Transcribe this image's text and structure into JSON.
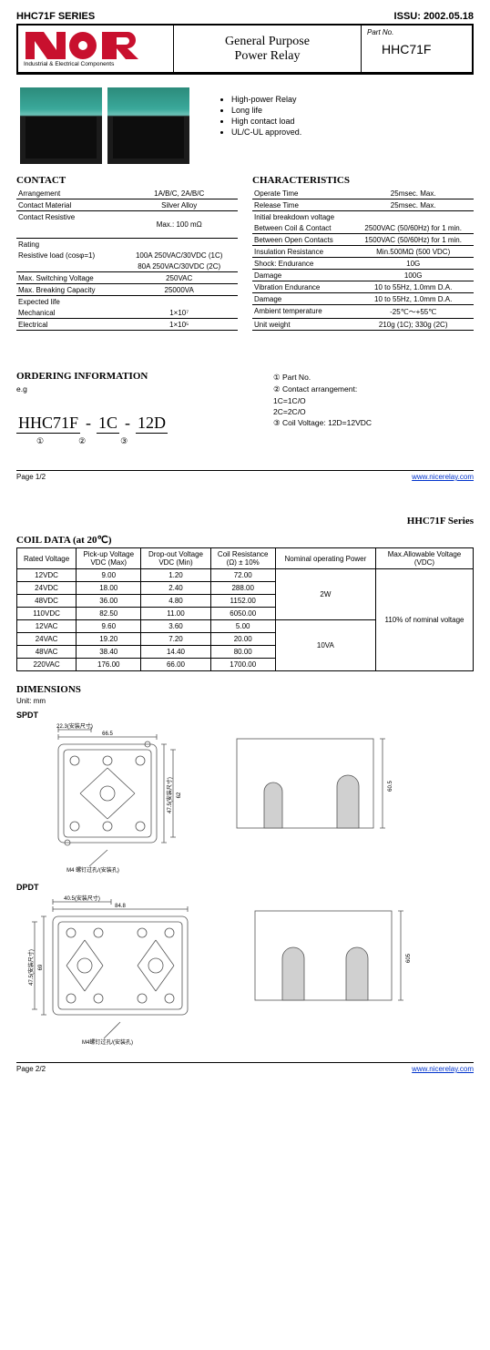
{
  "header": {
    "series": "HHC71F SERIES",
    "issue": "ISSU: 2002.05.18",
    "logo_sub": "Industrial & Electrical Components",
    "title_l1": "General Purpose",
    "title_l2": "Power Relay",
    "partno_label": "Part No.",
    "partno": "HHC71F",
    "logo_color": "#c8102e"
  },
  "bullets": [
    "High-power Relay",
    "Long life",
    "High contact load",
    "UL/C-UL approved."
  ],
  "contact": {
    "title": "CONTACT",
    "rows": [
      [
        "Arrangement",
        "1A/B/C, 2A/B/C"
      ],
      [
        "Contact Material",
        "Silver Alloy"
      ],
      [
        "Contact Resistive",
        "Max.: 100 mΩ"
      ],
      [
        "Rating",
        ""
      ],
      [
        "Resistive load  (cosφ=1)",
        "100A 250VAC/30VDC (1C)"
      ],
      [
        "",
        "80A 250VAC/30VDC (2C)"
      ],
      [
        "Max. Switching Voltage",
        "250VAC"
      ],
      [
        "Max. Breaking Capacity",
        "25000VA"
      ],
      [
        "Expected life",
        ""
      ],
      [
        "        Mechanical",
        "1×10⁷"
      ],
      [
        "        Electrical",
        "1×10⁵"
      ]
    ]
  },
  "char": {
    "title": "CHARACTERISTICS",
    "rows": [
      [
        "Operate Time",
        "25msec.  Max."
      ],
      [
        "Release Time",
        "25msec.  Max."
      ],
      [
        "Initial breakdown voltage",
        ""
      ],
      [
        "  Between Coil & Contact",
        "2500VAC (50/60Hz) for 1 min."
      ],
      [
        "  Between Open  Contacts",
        "1500VAC (50/60Hz) for 1 min."
      ],
      [
        "Insulation Resistance",
        "Min.500MΩ  (500 VDC)"
      ],
      [
        "Shock:         Endurance",
        "10G"
      ],
      [
        "                    Damage",
        "100G"
      ],
      [
        "Vibration      Endurance",
        "10 to 55Hz, 1.0mm D.A."
      ],
      [
        "                    Damage",
        "10 to 55Hz, 1.0mm D.A."
      ],
      [
        "Ambient temperature",
        "-25℃～+55℃"
      ],
      [
        "Unit weight",
        "210g (1C); 330g (2C)"
      ]
    ]
  },
  "ordering": {
    "title": "ORDERING INFORMATION",
    "eg": "e.g",
    "code_parts": [
      "HHC71F",
      "1C",
      "12D"
    ],
    "nums": [
      "①",
      "②",
      "③"
    ],
    "legend": [
      "① Part No.",
      "② Contact arrangement:",
      "     1C=1C/O",
      "     2C=2C/O",
      "③ Coil Voltage:    12D=12VDC"
    ]
  },
  "page1_foot": {
    "page": "Page 1/2",
    "link": "www.nicerelay.com"
  },
  "page2": {
    "title": "HHC71F Series",
    "coil_title": "COIL DATA (at 20℃)",
    "headers": [
      "Rated Voltage",
      "Pick-up Voltage\nVDC (Max)",
      "Drop-out Voltage\nVDC (Min)",
      "Coil Resistance\n(Ω)  ± 10%",
      "Nominal operating Power",
      "Max.Allowable Voltage\n(VDC)"
    ],
    "rows": [
      [
        "12VDC",
        "9.00",
        "1.20",
        "72.00"
      ],
      [
        "24VDC",
        "18.00",
        "2.40",
        "288.00"
      ],
      [
        "48VDC",
        "36.00",
        "4.80",
        "1152.00"
      ],
      [
        "110VDC",
        "82.50",
        "11.00",
        "6050.00"
      ],
      [
        "12VAC",
        "9.60",
        "3.60",
        "5.00"
      ],
      [
        "24VAC",
        "19.20",
        "7.20",
        "20.00"
      ],
      [
        "48VAC",
        "38.40",
        "14.40",
        "80.00"
      ],
      [
        "220VAC",
        "176.00",
        "66.00",
        "1700.00"
      ]
    ],
    "power": [
      "2W",
      "10VA"
    ],
    "maxv": "110% of nominal voltage",
    "dim_title": "DIMENSIONS",
    "dim_unit": "Unit: mm",
    "spdt": "SPDT",
    "dpdt": "DPDT",
    "spdt_dims": {
      "w": "66.5",
      "w2": "22.3(安装尺寸)",
      "h": "47.5(安装尺寸)",
      "h2": "62",
      "hole": "M4 螺钉过孔/(安装孔)",
      "side_h": "60.5"
    },
    "dpdt_dims": {
      "w": "84.8",
      "w2": "40.5(安装尺寸)",
      "h": "47.5(安装尺寸)",
      "h2": "69",
      "hole": "M4螺钉过孔/(安装孔)",
      "side_h": "605"
    },
    "foot": {
      "page": "Page 2/2",
      "link": "www.nicerelay.com"
    }
  }
}
